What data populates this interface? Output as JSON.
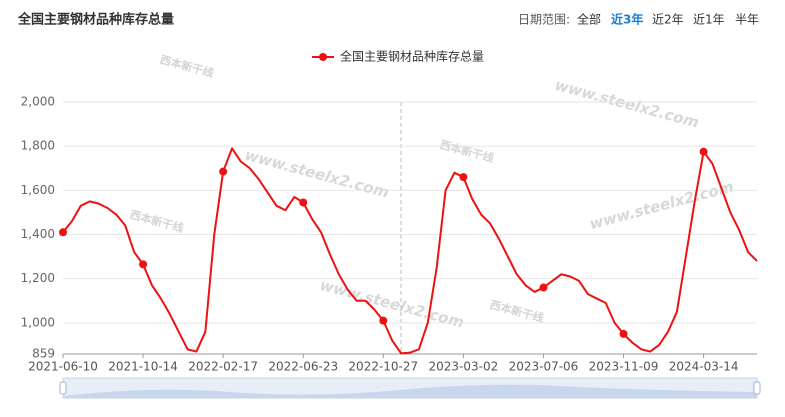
{
  "chart_data": {
    "type": "line",
    "title": "全国主要钢材品种库存总量",
    "categories": [
      "2021-06-10",
      null,
      null,
      null,
      null,
      null,
      null,
      null,
      null,
      "2021-10-14",
      null,
      null,
      null,
      null,
      null,
      null,
      null,
      null,
      "2022-02-17",
      null,
      null,
      null,
      null,
      null,
      null,
      null,
      null,
      "2022-06-23",
      null,
      null,
      null,
      null,
      null,
      null,
      null,
      null,
      "2022-10-27",
      null,
      null,
      null,
      null,
      null,
      null,
      null,
      null,
      "2023-03-02",
      null,
      null,
      null,
      null,
      null,
      null,
      null,
      null,
      "2023-07-06",
      null,
      null,
      null,
      null,
      null,
      null,
      null,
      null,
      "2023-11-09",
      null,
      null,
      null,
      null,
      null,
      null,
      null,
      null,
      "2024-03-14",
      null,
      null,
      null,
      null,
      null,
      null
    ],
    "series": [
      {
        "name": "全国主要钢材品种库存总量",
        "color": "#ee1111",
        "values": [
          1410,
          1460,
          1530,
          1550,
          1540,
          1520,
          1490,
          1440,
          1320,
          1265,
          1170,
          1110,
          1040,
          960,
          880,
          870,
          960,
          1400,
          1685,
          1790,
          1730,
          1700,
          1650,
          1590,
          1530,
          1510,
          1570,
          1545,
          1470,
          1410,
          1310,
          1220,
          1150,
          1100,
          1100,
          1060,
          1010,
          920,
          862,
          865,
          880,
          1000,
          1250,
          1600,
          1680,
          1660,
          1560,
          1490,
          1450,
          1380,
          1300,
          1220,
          1170,
          1140,
          1160,
          1190,
          1220,
          1210,
          1190,
          1130,
          1110,
          1090,
          1000,
          950,
          910,
          880,
          870,
          900,
          960,
          1050,
          1300,
          1550,
          1775,
          1720,
          1610,
          1500,
          1420,
          1320,
          1280
        ]
      }
    ],
    "ylim": [
      859,
      2000
    ],
    "yticks": [
      859,
      {
        "value": 1000,
        "label": "1,000"
      },
      {
        "value": 1200,
        "label": "1,200"
      },
      {
        "value": 1400,
        "label": "1,400"
      },
      {
        "value": 1600,
        "label": "1,600"
      },
      {
        "value": 1800,
        "label": "1,800"
      },
      {
        "value": 2000,
        "label": "2,000"
      }
    ],
    "grid": true,
    "legend": "top"
  },
  "date_range": {
    "label": "日期范围:",
    "options": [
      "全部",
      "近3年",
      "近2年",
      "近1年",
      "半年"
    ],
    "selected_index": 1
  },
  "watermark": {
    "url": "www.steelx2.com",
    "brand": "西本新干线"
  }
}
